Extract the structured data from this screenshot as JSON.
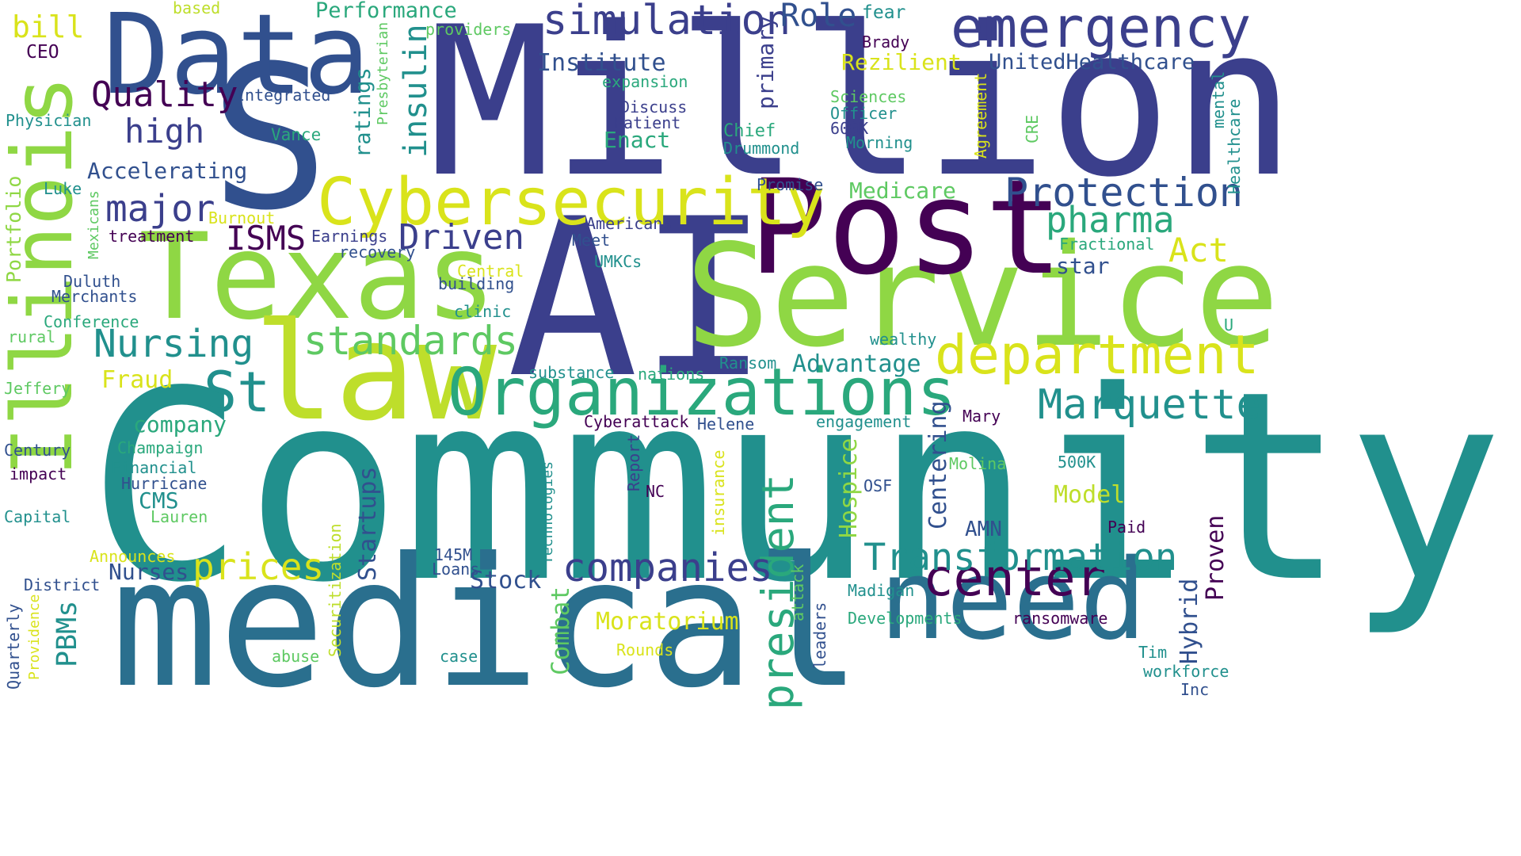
{
  "palette": {
    "purple-dark": "#440154",
    "indigo": "#3b3f8c",
    "navy": "#31508e",
    "blue-teal": "#2a6f8e",
    "teal": "#21908d",
    "green-teal": "#2aa87c",
    "green": "#5ec962",
    "lime-green": "#8fd744",
    "yellow-green": "#bede2b",
    "yellow": "#d9e31b"
  },
  "words": [
    {
      "text": "Community",
      "color": "teal"
    },
    {
      "text": "medical",
      "color": "blue-teal"
    },
    {
      "text": "Million",
      "color": "indigo"
    },
    {
      "text": "AI",
      "color": "indigo"
    },
    {
      "text": "Service",
      "color": "lime-green"
    },
    {
      "text": "S",
      "color": "navy"
    },
    {
      "text": "Post",
      "color": "purple-dark"
    },
    {
      "text": "Texas",
      "color": "lime-green"
    },
    {
      "text": "law",
      "color": "yellow-green"
    },
    {
      "text": "Illinois",
      "color": "lime-green"
    },
    {
      "text": "Data",
      "color": "navy"
    },
    {
      "text": "need",
      "color": "blue-teal"
    },
    {
      "text": "Organizations",
      "color": "green-teal"
    },
    {
      "text": "Cybersecurity",
      "color": "yellow"
    },
    {
      "text": "emergency",
      "color": "indigo"
    },
    {
      "text": "department",
      "color": "yellow"
    },
    {
      "text": "center",
      "color": "purple-dark"
    },
    {
      "text": "president",
      "color": "green-teal"
    },
    {
      "text": "Marquette",
      "color": "teal"
    },
    {
      "text": "Transformation",
      "color": "teal"
    },
    {
      "text": "companies",
      "color": "indigo"
    },
    {
      "text": "simulation",
      "color": "indigo"
    },
    {
      "text": "Protection",
      "color": "navy"
    },
    {
      "text": "standards",
      "color": "green"
    },
    {
      "text": "Nursing",
      "color": "teal"
    },
    {
      "text": "prices",
      "color": "yellow"
    },
    {
      "text": "St",
      "color": "teal"
    },
    {
      "text": "Driven",
      "color": "indigo"
    },
    {
      "text": "pharma",
      "color": "green-teal"
    },
    {
      "text": "major",
      "color": "indigo"
    },
    {
      "text": "Quality",
      "color": "purple-dark"
    },
    {
      "text": "high",
      "color": "indigo"
    },
    {
      "text": "ISMS",
      "color": "purple-dark"
    },
    {
      "text": "insulin",
      "color": "teal"
    },
    {
      "text": "Role",
      "color": "navy"
    },
    {
      "text": "Act",
      "color": "yellow"
    },
    {
      "text": "Centering",
      "color": "navy"
    },
    {
      "text": "Hospice",
      "color": "lime-green"
    },
    {
      "text": "Startups",
      "color": "navy"
    },
    {
      "text": "Proven",
      "color": "purple-dark"
    },
    {
      "text": "Hybrid",
      "color": "navy"
    },
    {
      "text": "PBMs",
      "color": "teal"
    },
    {
      "text": "Combat",
      "color": "green"
    },
    {
      "text": "Stock",
      "color": "navy"
    },
    {
      "text": "Moratorium",
      "color": "yellow"
    },
    {
      "text": "Model",
      "color": "yellow-green"
    },
    {
      "text": "Advantage",
      "color": "teal"
    },
    {
      "text": "Medicare",
      "color": "green"
    },
    {
      "text": "Accelerating",
      "color": "navy"
    },
    {
      "text": "company",
      "color": "green-teal"
    },
    {
      "text": "Fraud",
      "color": "yellow"
    },
    {
      "text": "Nurses",
      "color": "navy"
    },
    {
      "text": "CMS",
      "color": "teal"
    },
    {
      "text": "AMN",
      "color": "navy"
    },
    {
      "text": "Performance",
      "color": "green-teal"
    },
    {
      "text": "Institute",
      "color": "navy"
    },
    {
      "text": "UnitedHealthcare",
      "color": "navy"
    },
    {
      "text": "Rezilient",
      "color": "yellow"
    },
    {
      "text": "primary",
      "color": "indigo"
    },
    {
      "text": "Enact",
      "color": "green-teal"
    },
    {
      "text": "ratings",
      "color": "teal"
    },
    {
      "text": "bill",
      "color": "yellow"
    },
    {
      "text": "star",
      "color": "navy"
    },
    {
      "text": "Portfolio",
      "color": "lime-green"
    },
    {
      "text": "Integrated",
      "color": "navy"
    },
    {
      "text": "Physician",
      "color": "teal"
    },
    {
      "text": "CEO",
      "color": "purple-dark"
    },
    {
      "text": "based",
      "color": "yellow-green"
    },
    {
      "text": "providers",
      "color": "green"
    },
    {
      "text": "Presbyterian",
      "color": "green"
    },
    {
      "text": "Vance",
      "color": "green-teal"
    },
    {
      "text": "expansion",
      "color": "green-teal"
    },
    {
      "text": "Discuss",
      "color": "indigo"
    },
    {
      "text": "Patient",
      "color": "indigo"
    },
    {
      "text": "Chief",
      "color": "green-teal"
    },
    {
      "text": "Drummond",
      "color": "teal"
    },
    {
      "text": "Sciences",
      "color": "green"
    },
    {
      "text": "Officer",
      "color": "teal"
    },
    {
      "text": "600K",
      "color": "indigo"
    },
    {
      "text": "Morning",
      "color": "teal"
    },
    {
      "text": "fear",
      "color": "teal"
    },
    {
      "text": "Brady",
      "color": "purple-dark"
    },
    {
      "text": "Agreement",
      "color": "yellow"
    },
    {
      "text": "CRE",
      "color": "green"
    },
    {
      "text": "mental",
      "color": "teal"
    },
    {
      "text": "Healthcare",
      "color": "teal"
    },
    {
      "text": "Promise",
      "color": "navy"
    },
    {
      "text": "Fractional",
      "color": "green-teal"
    },
    {
      "text": "Luke",
      "color": "teal"
    },
    {
      "text": "Mexicans",
      "color": "green"
    },
    {
      "text": "Burnout",
      "color": "yellow"
    },
    {
      "text": "treatment",
      "color": "purple-dark"
    },
    {
      "text": "Earnings",
      "color": "indigo"
    },
    {
      "text": "recovery",
      "color": "navy"
    },
    {
      "text": "Americans",
      "color": "indigo"
    },
    {
      "text": "Meet",
      "color": "navy"
    },
    {
      "text": "UMKCs",
      "color": "teal"
    },
    {
      "text": "Central",
      "color": "yellow"
    },
    {
      "text": "building",
      "color": "navy"
    },
    {
      "text": "clinic",
      "color": "teal"
    },
    {
      "text": "Duluth",
      "color": "navy"
    },
    {
      "text": "Merchants",
      "color": "navy"
    },
    {
      "text": "Conference",
      "color": "green-teal"
    },
    {
      "text": "rural",
      "color": "green"
    },
    {
      "text": "Jeffery",
      "color": "green"
    },
    {
      "text": "wealthy",
      "color": "teal"
    },
    {
      "text": "U",
      "color": "green-teal"
    },
    {
      "text": "substance",
      "color": "teal"
    },
    {
      "text": "nations",
      "color": "green-teal"
    },
    {
      "text": "Ransom",
      "color": "teal"
    },
    {
      "text": "Cyberattack",
      "color": "purple-dark"
    },
    {
      "text": "Helene",
      "color": "navy"
    },
    {
      "text": "engagement",
      "color": "teal"
    },
    {
      "text": "Mary",
      "color": "purple-dark"
    },
    {
      "text": "Molina",
      "color": "green"
    },
    {
      "text": "500K",
      "color": "teal"
    },
    {
      "text": "Champaign",
      "color": "green-teal"
    },
    {
      "text": "Century",
      "color": "navy"
    },
    {
      "text": "Financial",
      "color": "teal"
    },
    {
      "text": "impact",
      "color": "purple-dark"
    },
    {
      "text": "Hurricane",
      "color": "navy"
    },
    {
      "text": "Capital",
      "color": "teal"
    },
    {
      "text": "Lauren",
      "color": "green"
    },
    {
      "text": "Technologies",
      "color": "teal"
    },
    {
      "text": "Report",
      "color": "indigo"
    },
    {
      "text": "insurance",
      "color": "yellow"
    },
    {
      "text": "NC",
      "color": "purple-dark"
    },
    {
      "text": "OSF",
      "color": "navy"
    },
    {
      "text": "Paid",
      "color": "purple-dark"
    },
    {
      "text": "Announces",
      "color": "yellow"
    },
    {
      "text": "145M",
      "color": "navy"
    },
    {
      "text": "Loans",
      "color": "navy"
    },
    {
      "text": "Securitization",
      "color": "yellow-green"
    },
    {
      "text": "District",
      "color": "navy"
    },
    {
      "text": "Quarterly",
      "color": "navy"
    },
    {
      "text": "Providence",
      "color": "yellow"
    },
    {
      "text": "attack",
      "color": "green"
    },
    {
      "text": "leaders",
      "color": "navy"
    },
    {
      "text": "Madigan",
      "color": "teal"
    },
    {
      "text": "Developments",
      "color": "green-teal"
    },
    {
      "text": "ransomware",
      "color": "purple-dark"
    },
    {
      "text": "Rounds",
      "color": "yellow"
    },
    {
      "text": "abuse",
      "color": "green"
    },
    {
      "text": "case",
      "color": "teal"
    },
    {
      "text": "Tim",
      "color": "teal"
    },
    {
      "text": "workforce",
      "color": "teal"
    },
    {
      "text": "Inc",
      "color": "navy"
    }
  ]
}
